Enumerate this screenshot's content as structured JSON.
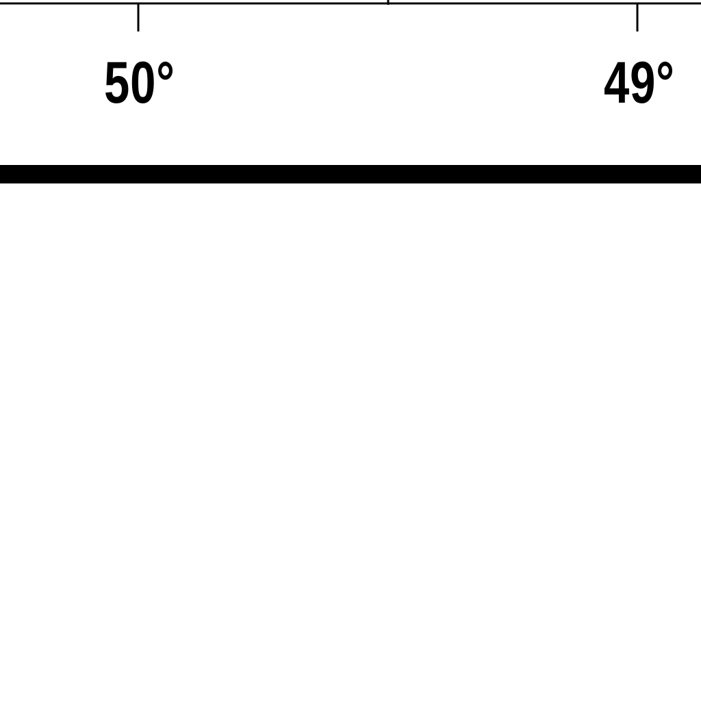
{
  "map": {
    "longitude_labels": [
      "50°",
      "49°"
    ],
    "ink_color": "#000000",
    "background_color": "#ffffff"
  }
}
